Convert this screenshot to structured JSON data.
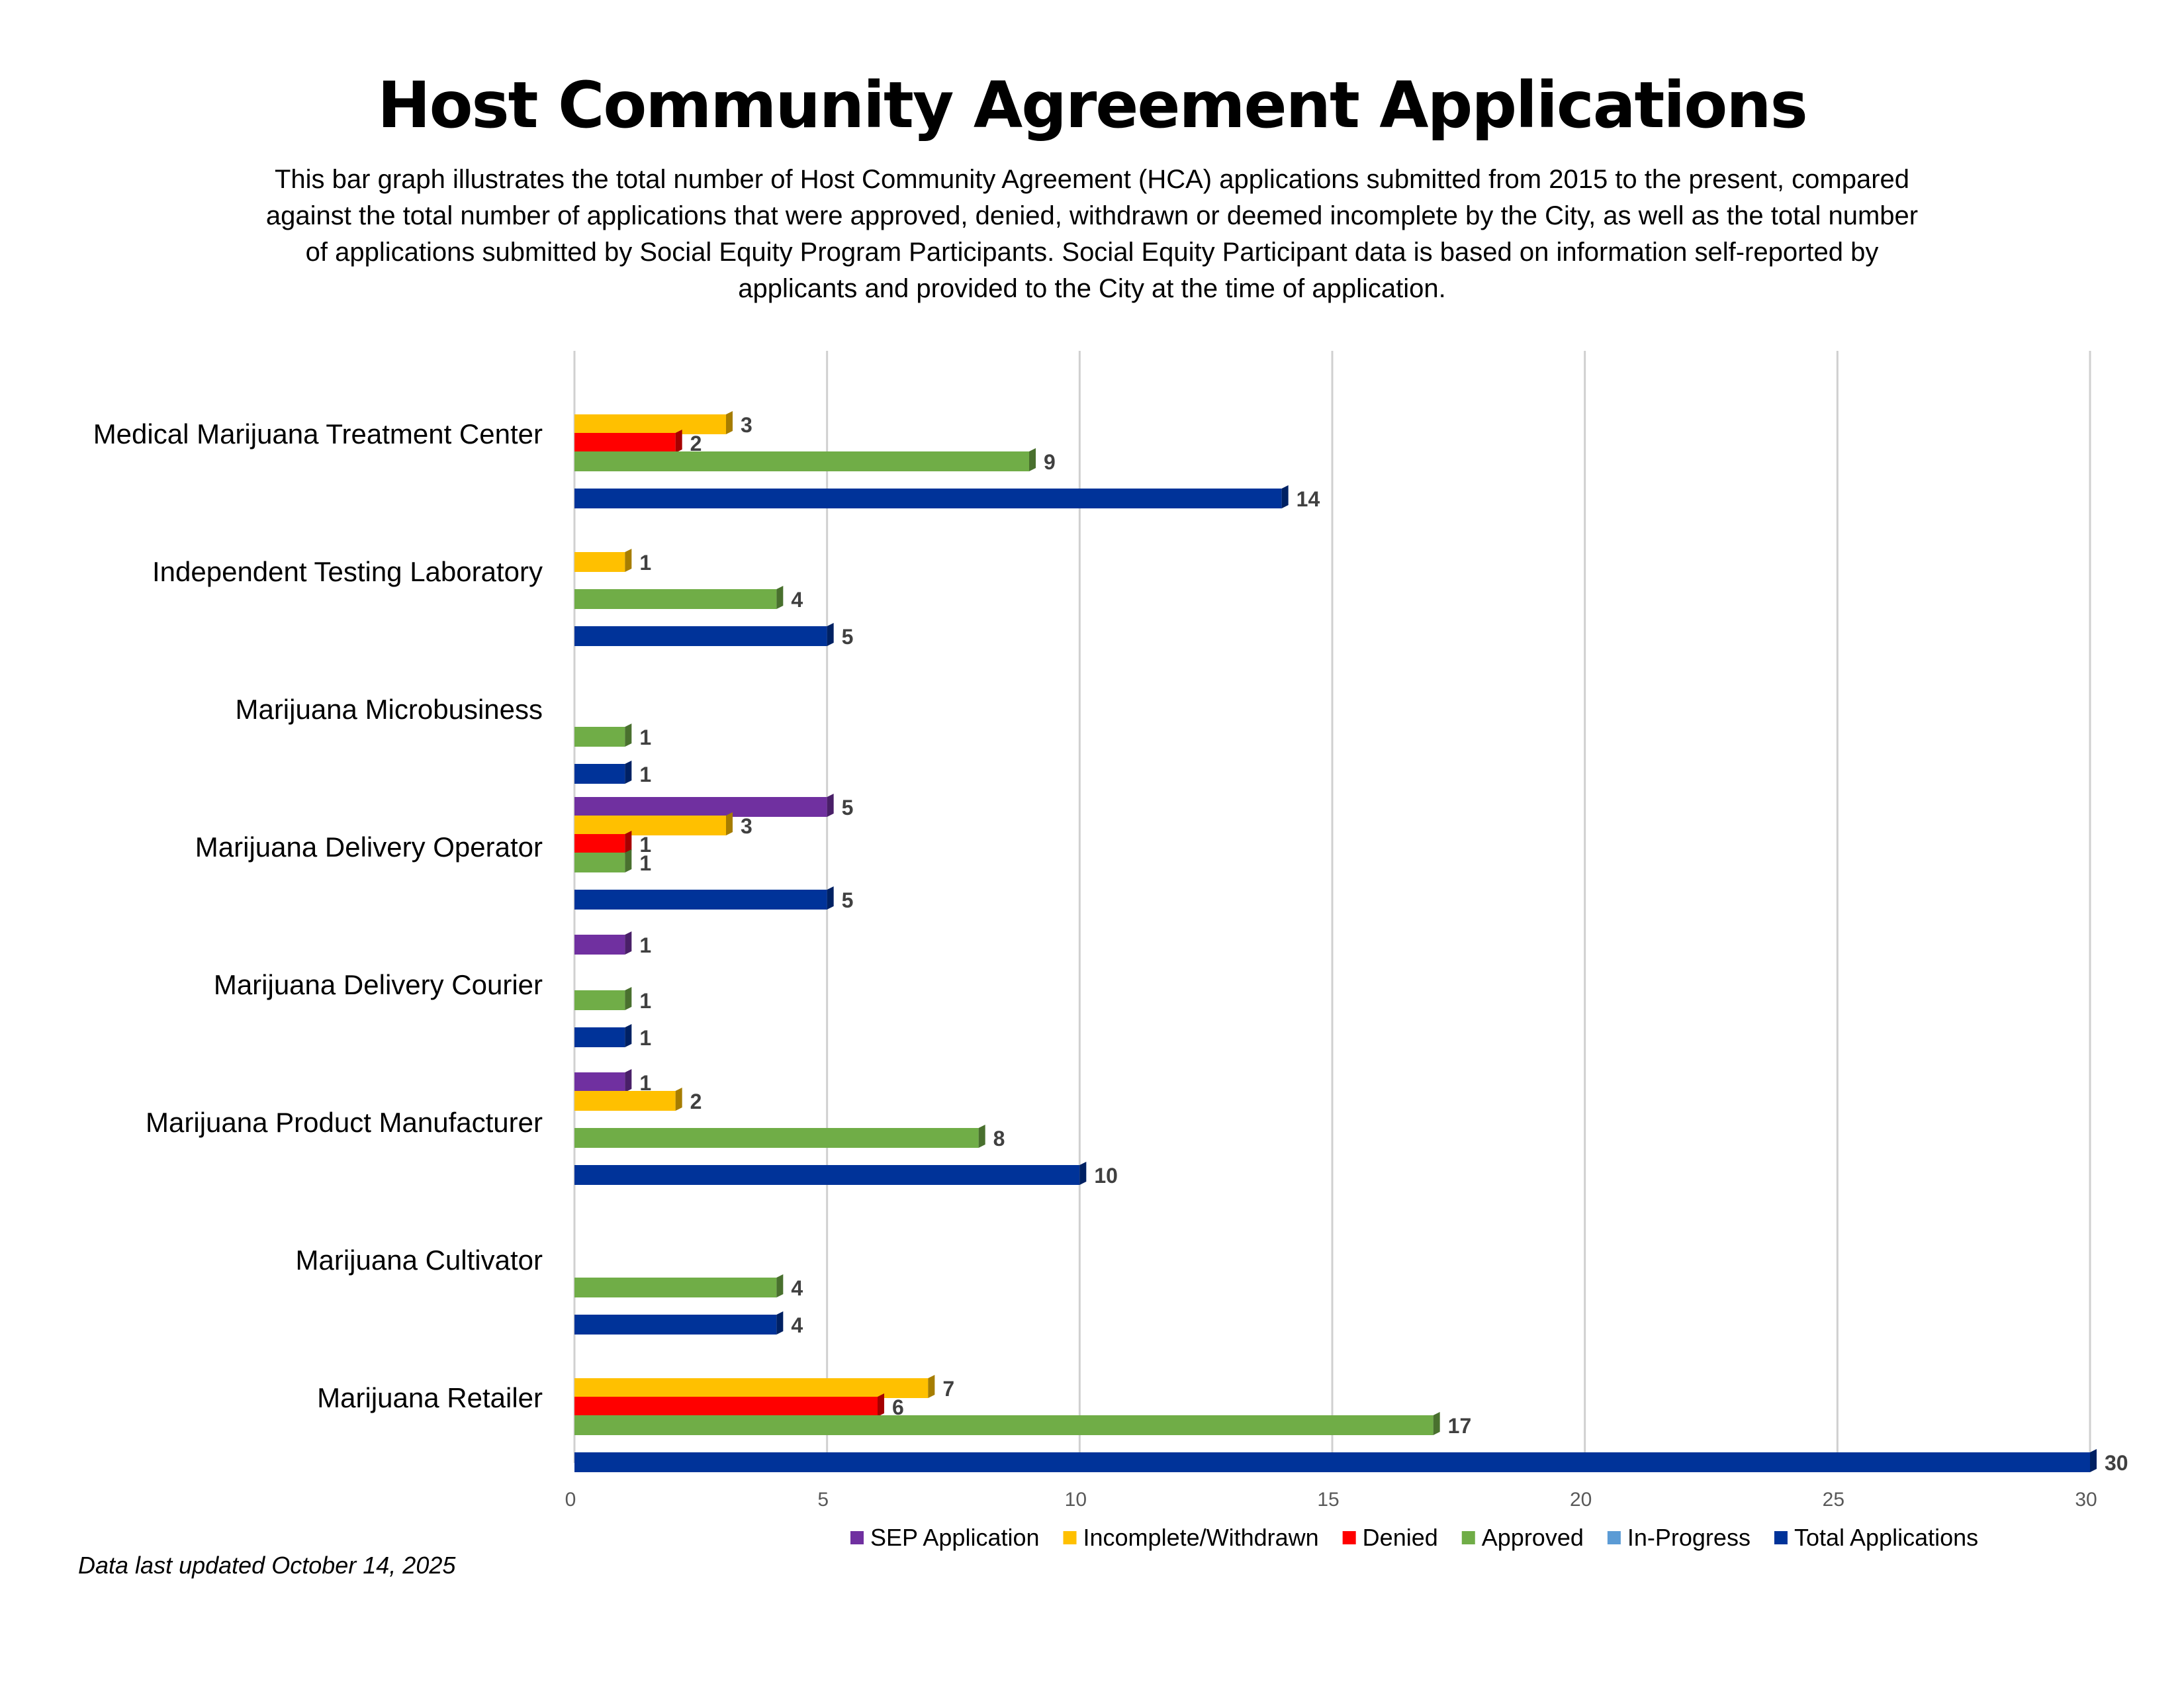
{
  "title": "Host Community Agreement Applications",
  "subtitle": "This bar graph illustrates the total number of Host Community Agreement (HCA) applications submitted from 2015 to the present, compared against the total number of applications that were approved, denied, withdrawn or deemed incomplete by the City, as well as the total number of applications submitted by Social Equity Program Participants. Social Equity Participant data is based on information self-reported by applicants and provided to the City at the time of application.",
  "footnote": "Data last updated October 14, 2025",
  "chart_data": {
    "type": "bar",
    "orientation": "horizontal",
    "title": "Host Community Agreement Applications",
    "xlim": [
      0,
      30
    ],
    "x_ticks": [
      0,
      5,
      10,
      15,
      20,
      25,
      30
    ],
    "grid": true,
    "legend_position": "bottom",
    "categories": [
      "Medical Marijuana Treatment Center",
      "Independent Testing Laboratory",
      "Marijuana Microbusiness",
      "Marijuana Delivery Operator",
      "Marijuana Delivery Courier",
      "Marijuana Product Manufacturer",
      "Marijuana Cultivator",
      "Marijuana Retailer"
    ],
    "series": [
      {
        "name": "SEP Application",
        "color": "#7030A0",
        "values": [
          null,
          null,
          null,
          5,
          1,
          1,
          null,
          null
        ]
      },
      {
        "name": "Incomplete/Withdrawn",
        "color": "#FFC000",
        "values": [
          3,
          1,
          null,
          3,
          null,
          2,
          null,
          7
        ]
      },
      {
        "name": "Denied",
        "color": "#FF0000",
        "values": [
          2,
          null,
          null,
          1,
          null,
          null,
          null,
          6
        ]
      },
      {
        "name": "Approved",
        "color": "#70AD47",
        "values": [
          9,
          4,
          1,
          1,
          1,
          8,
          4,
          17
        ]
      },
      {
        "name": "In-Progress",
        "color": "#5B9BD5",
        "values": [
          null,
          null,
          null,
          null,
          null,
          null,
          null,
          null
        ]
      },
      {
        "name": "Total Applications",
        "color": "#003399",
        "values": [
          14,
          5,
          1,
          5,
          1,
          10,
          4,
          30
        ]
      }
    ]
  }
}
